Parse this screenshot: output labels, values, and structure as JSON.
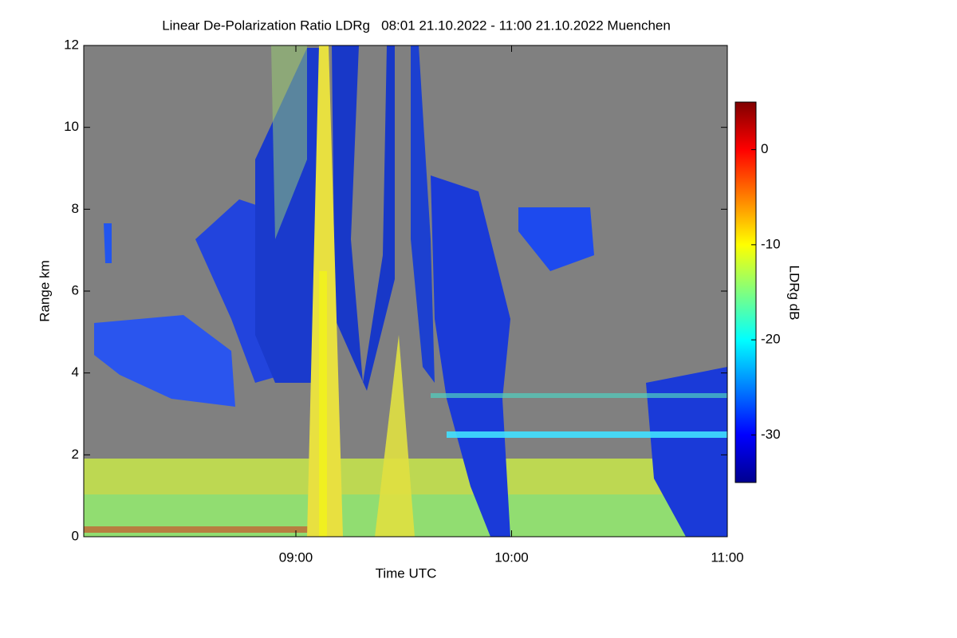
{
  "chart_data": {
    "type": "heatmap",
    "title": "Linear De-Polarization Ratio LDRg   08:01 21.10.2022 - 11:00 21.10.2022 Muenchen",
    "x_label": "Time UTC",
    "y_label": "Range km",
    "colorbar_label": "LDRg dB",
    "xlim": [
      8.0167,
      11.0
    ],
    "xticks": [
      {
        "value": 9,
        "label": "09:00"
      },
      {
        "value": 10,
        "label": "10:00"
      },
      {
        "value": 11,
        "label": "11:00"
      }
    ],
    "ylim": [
      0,
      12
    ],
    "yticks": [
      0,
      2,
      4,
      6,
      8,
      10,
      12
    ],
    "clim": [
      -35,
      5
    ],
    "cticks": [
      0,
      -10,
      -20,
      -30
    ],
    "colormap": "jet",
    "background_color": "#808080"
  }
}
